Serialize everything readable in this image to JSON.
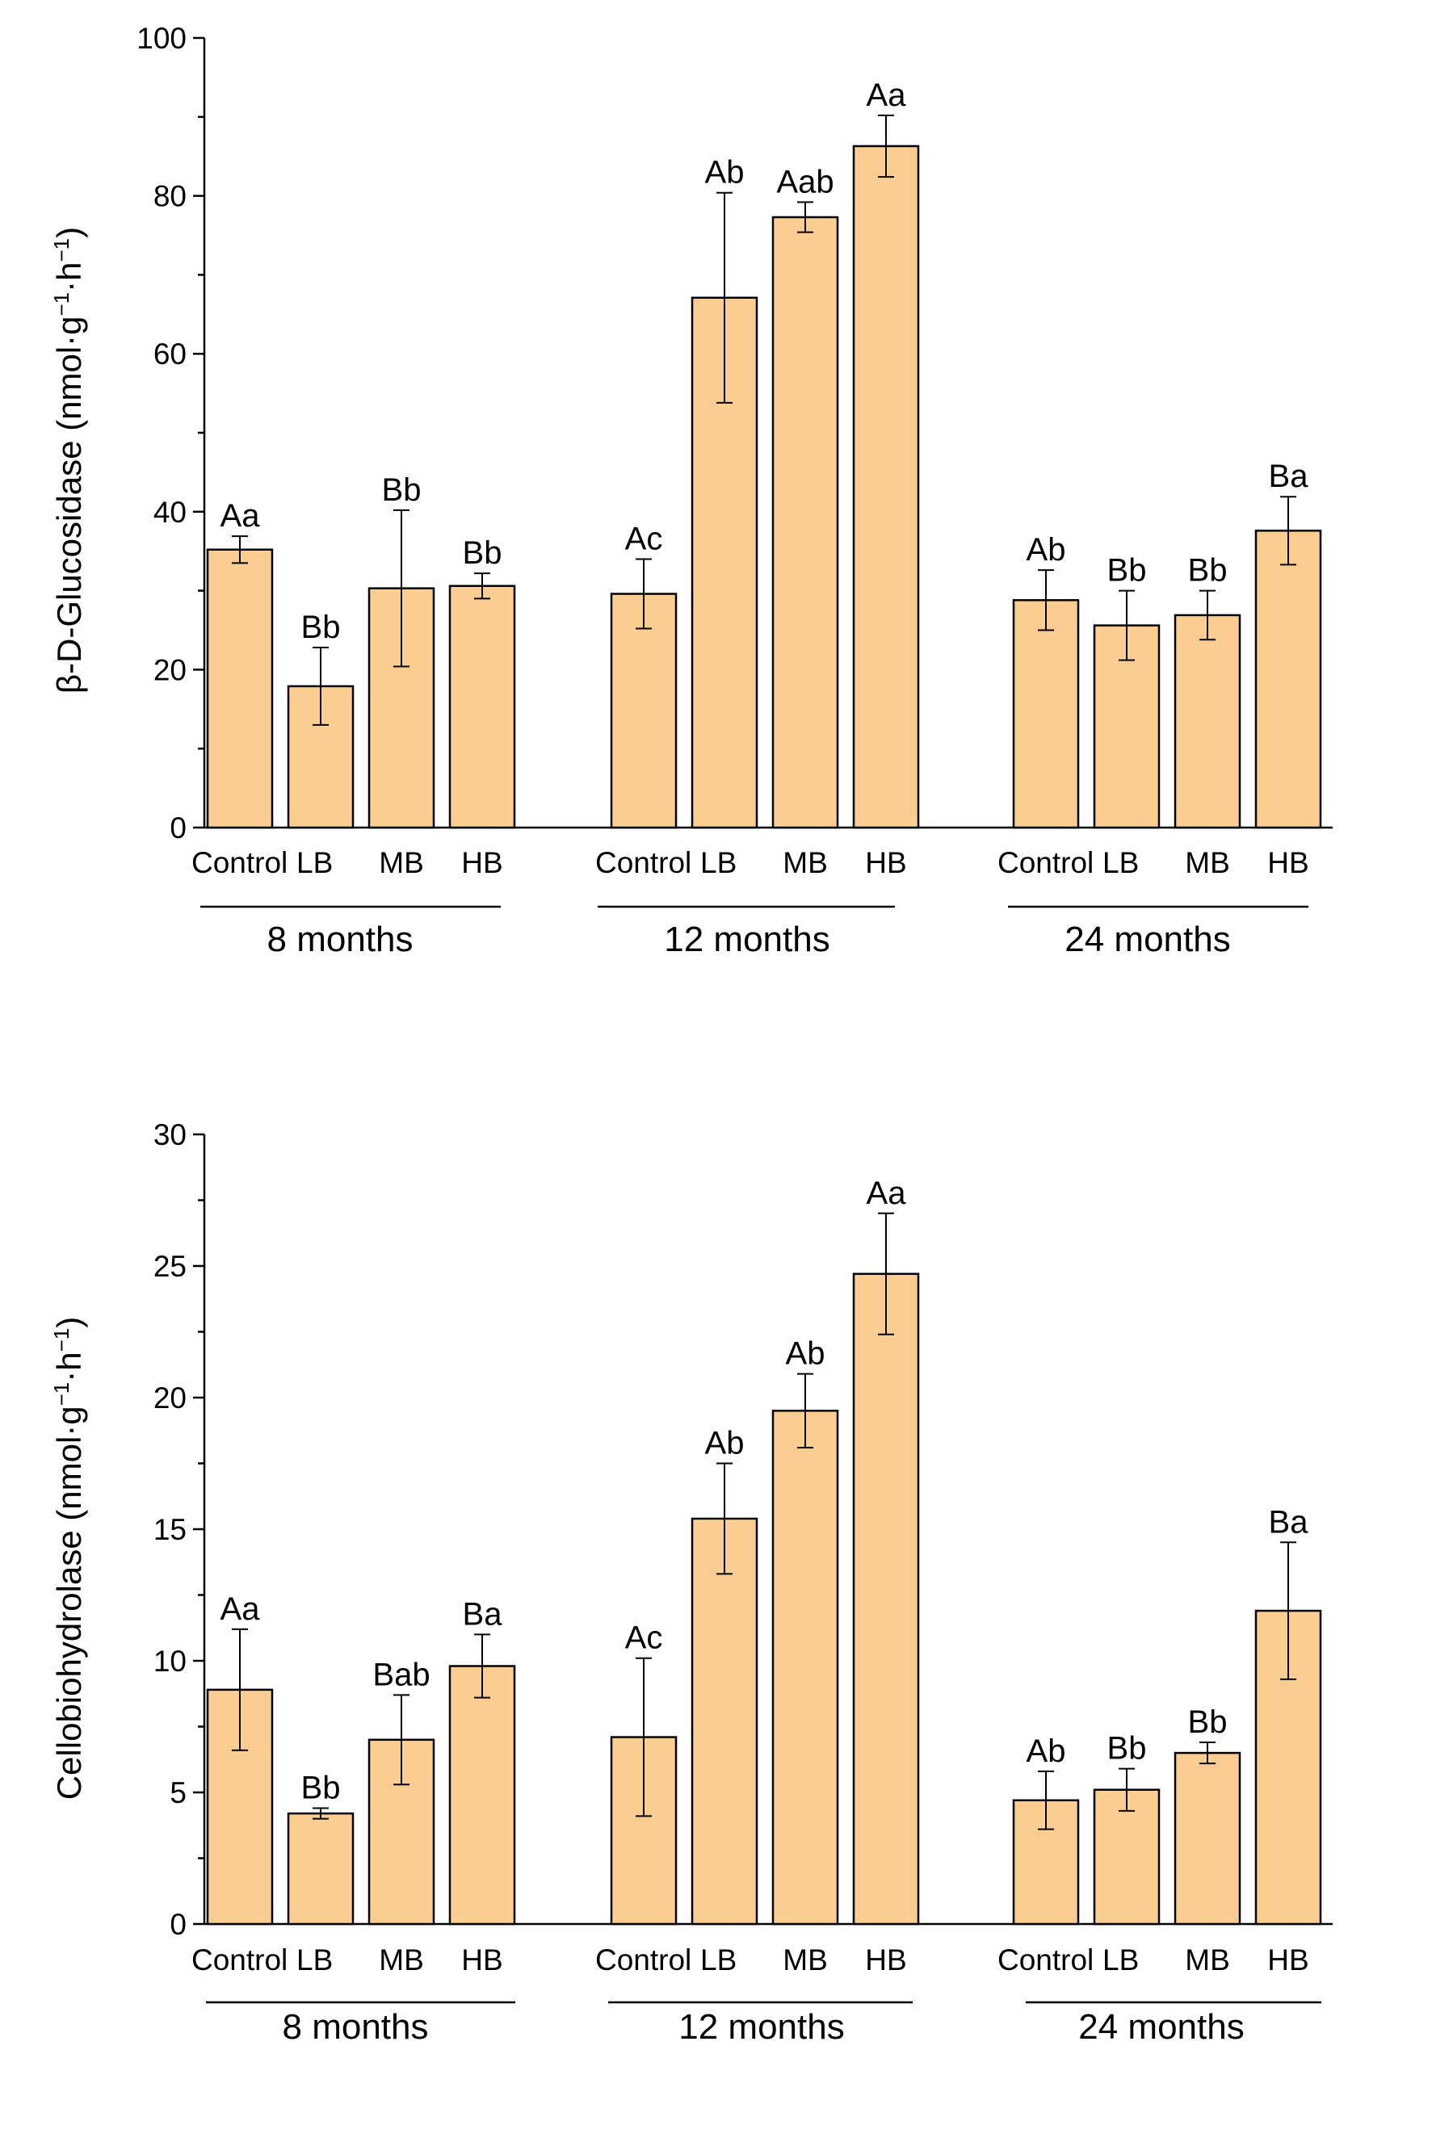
{
  "chart_data": [
    {
      "type": "bar",
      "ylabel_main": "β-D-Glucosidase (nmol·g",
      "ylabel_sup1": "−1",
      "ylabel_mid": "·h",
      "ylabel_sup2": "−1",
      "ylabel_end": ")",
      "ylim": [
        0,
        100
      ],
      "yticks": [
        0,
        20,
        40,
        60,
        80,
        100
      ],
      "categories": [
        "Control",
        "LB",
        "MB",
        "HB"
      ],
      "groups": [
        {
          "label": "8 months",
          "values": [
            35.2,
            17.9,
            30.3,
            30.6
          ],
          "errors": [
            1.7,
            4.9,
            9.9,
            1.6
          ],
          "letters": [
            "Aa",
            "Bb",
            "Bb",
            "Bb"
          ]
        },
        {
          "label": "12 months",
          "values": [
            29.6,
            67.1,
            77.3,
            86.3
          ],
          "errors": [
            4.4,
            13.3,
            1.9,
            3.9
          ],
          "letters": [
            "Ac",
            "Ab",
            "Aab",
            "Aa"
          ]
        },
        {
          "label": "24 months",
          "values": [
            28.8,
            25.6,
            26.9,
            37.6
          ],
          "errors": [
            3.8,
            4.4,
            3.1,
            4.3
          ],
          "letters": [
            "Ab",
            "Bb",
            "Bb",
            "Ba"
          ]
        }
      ],
      "bar_color": "#fccd91",
      "grid": false
    },
    {
      "type": "bar",
      "ylabel_main": "Cellobiohydrolase (nmol·g",
      "ylabel_sup1": "−1",
      "ylabel_mid": "·h",
      "ylabel_sup2": "−1",
      "ylabel_end": ")",
      "ylim": [
        0,
        30
      ],
      "yticks": [
        0,
        5,
        10,
        15,
        20,
        25,
        30
      ],
      "categories": [
        "Control",
        "LB",
        "MB",
        "HB"
      ],
      "groups": [
        {
          "label": "8 months",
          "values": [
            8.9,
            4.2,
            7.0,
            9.8
          ],
          "errors": [
            2.3,
            0.2,
            1.7,
            1.2
          ],
          "letters": [
            "Aa",
            "Bb",
            "Bab",
            "Ba"
          ]
        },
        {
          "label": "12 months",
          "values": [
            7.1,
            15.4,
            19.5,
            24.7
          ],
          "errors": [
            3.0,
            2.1,
            1.4,
            2.3
          ],
          "letters": [
            "Ac",
            "Ab",
            "Ab",
            "Aa"
          ]
        },
        {
          "label": "24 months",
          "values": [
            4.7,
            5.1,
            6.5,
            11.9
          ],
          "errors": [
            1.1,
            0.8,
            0.4,
            2.6
          ],
          "letters": [
            "Ab",
            "Bb",
            "Bb",
            "Ba"
          ]
        }
      ],
      "bar_color": "#fccd91",
      "grid": false
    }
  ]
}
